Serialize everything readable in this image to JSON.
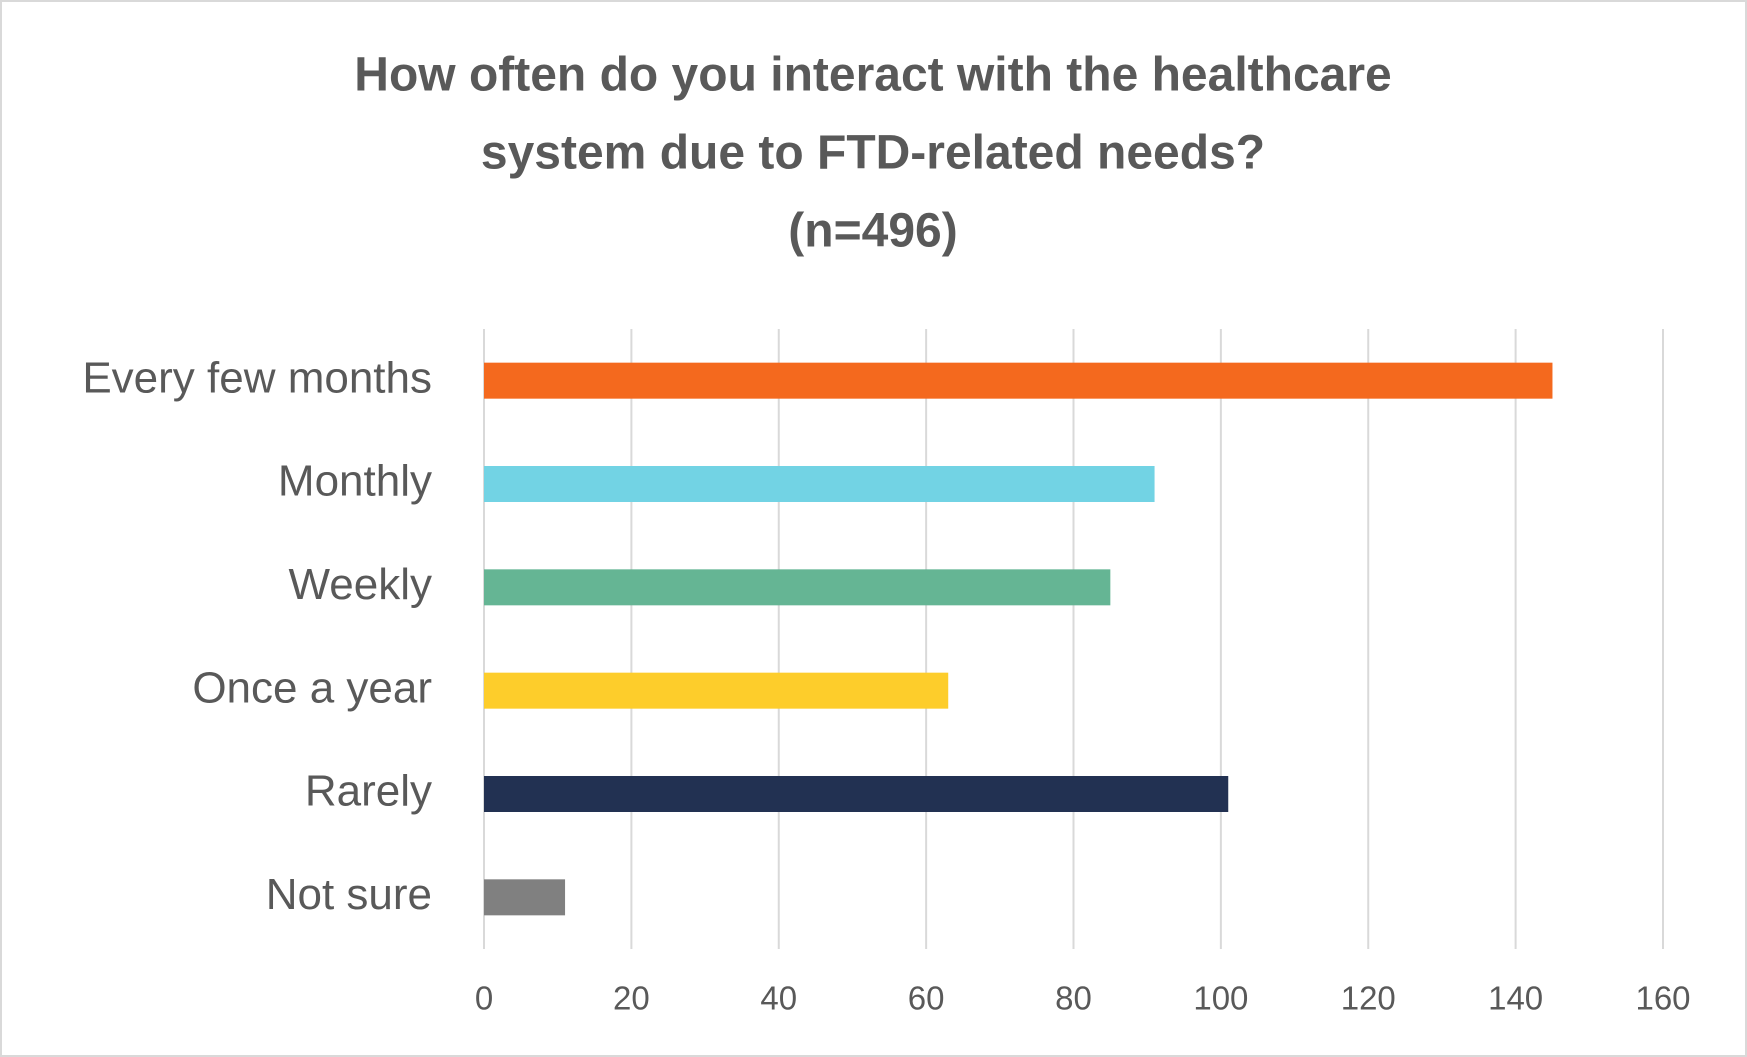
{
  "chart_data": {
    "type": "bar",
    "orientation": "horizontal",
    "title": [
      "How often do you interact with the healthcare",
      "system due to FTD-related needs?",
      "(n=496)"
    ],
    "categories": [
      "Every few months",
      "Monthly",
      "Weekly",
      "Once a year",
      "Rarely",
      "Not sure"
    ],
    "values": [
      145,
      91,
      85,
      63,
      101,
      11
    ],
    "colors": [
      "#f4691e",
      "#72d3e4",
      "#65b594",
      "#fdcd2b",
      "#223152",
      "#808080"
    ],
    "xlim": [
      0,
      160
    ],
    "xticks": [
      0,
      20,
      40,
      60,
      80,
      100,
      120,
      140,
      160
    ],
    "grid": true
  }
}
